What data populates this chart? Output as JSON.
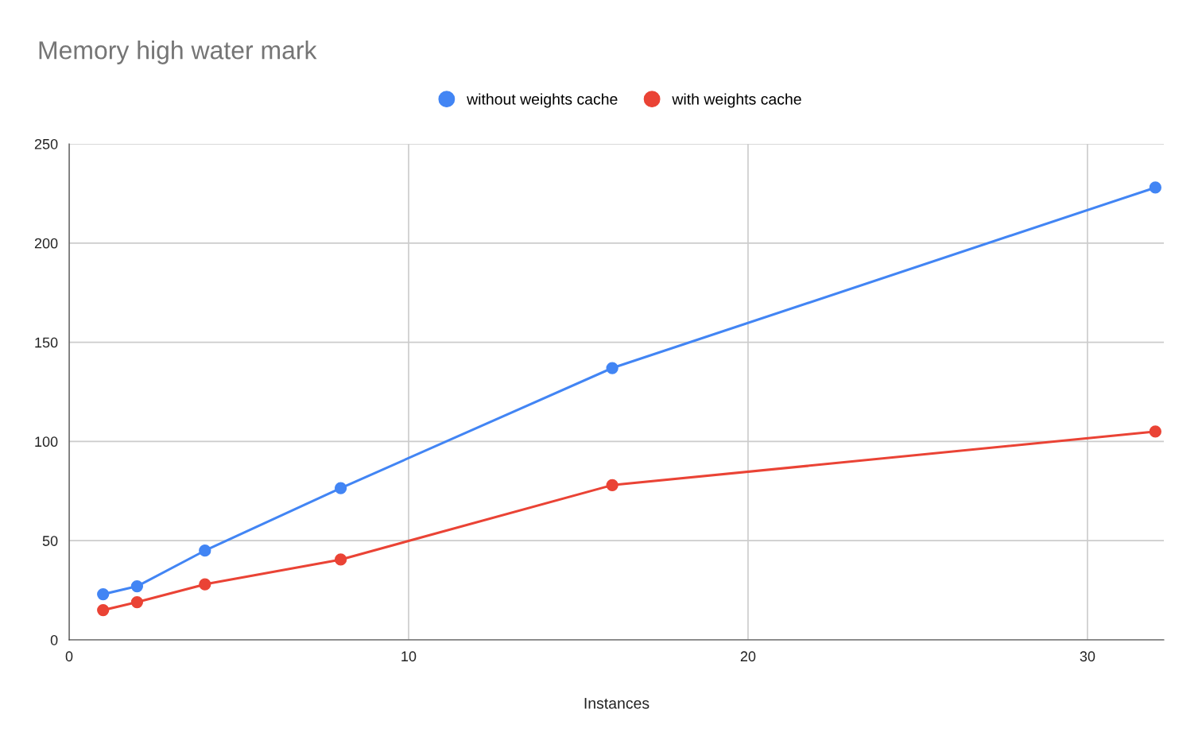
{
  "chart_data": {
    "type": "line",
    "title": "Memory high water mark",
    "xlabel": "Instances",
    "x": [
      1,
      2,
      4,
      8,
      16,
      32
    ],
    "series": [
      {
        "name": "without weights cache",
        "color": "#4285f4",
        "values": [
          23,
          27,
          45,
          76.5,
          137,
          228
        ]
      },
      {
        "name": "with weights cache",
        "color": "#ea4335",
        "values": [
          15,
          19,
          28,
          40.5,
          78,
          105
        ]
      }
    ],
    "xlim": [
      0,
      32.25
    ],
    "xticks": [
      0,
      10,
      20,
      30
    ],
    "ylim": [
      0,
      250
    ],
    "yticks": [
      0,
      50,
      100,
      150,
      200,
      250
    ],
    "grid": true,
    "legend": "top",
    "marker": "circle",
    "line_style": "solid"
  }
}
